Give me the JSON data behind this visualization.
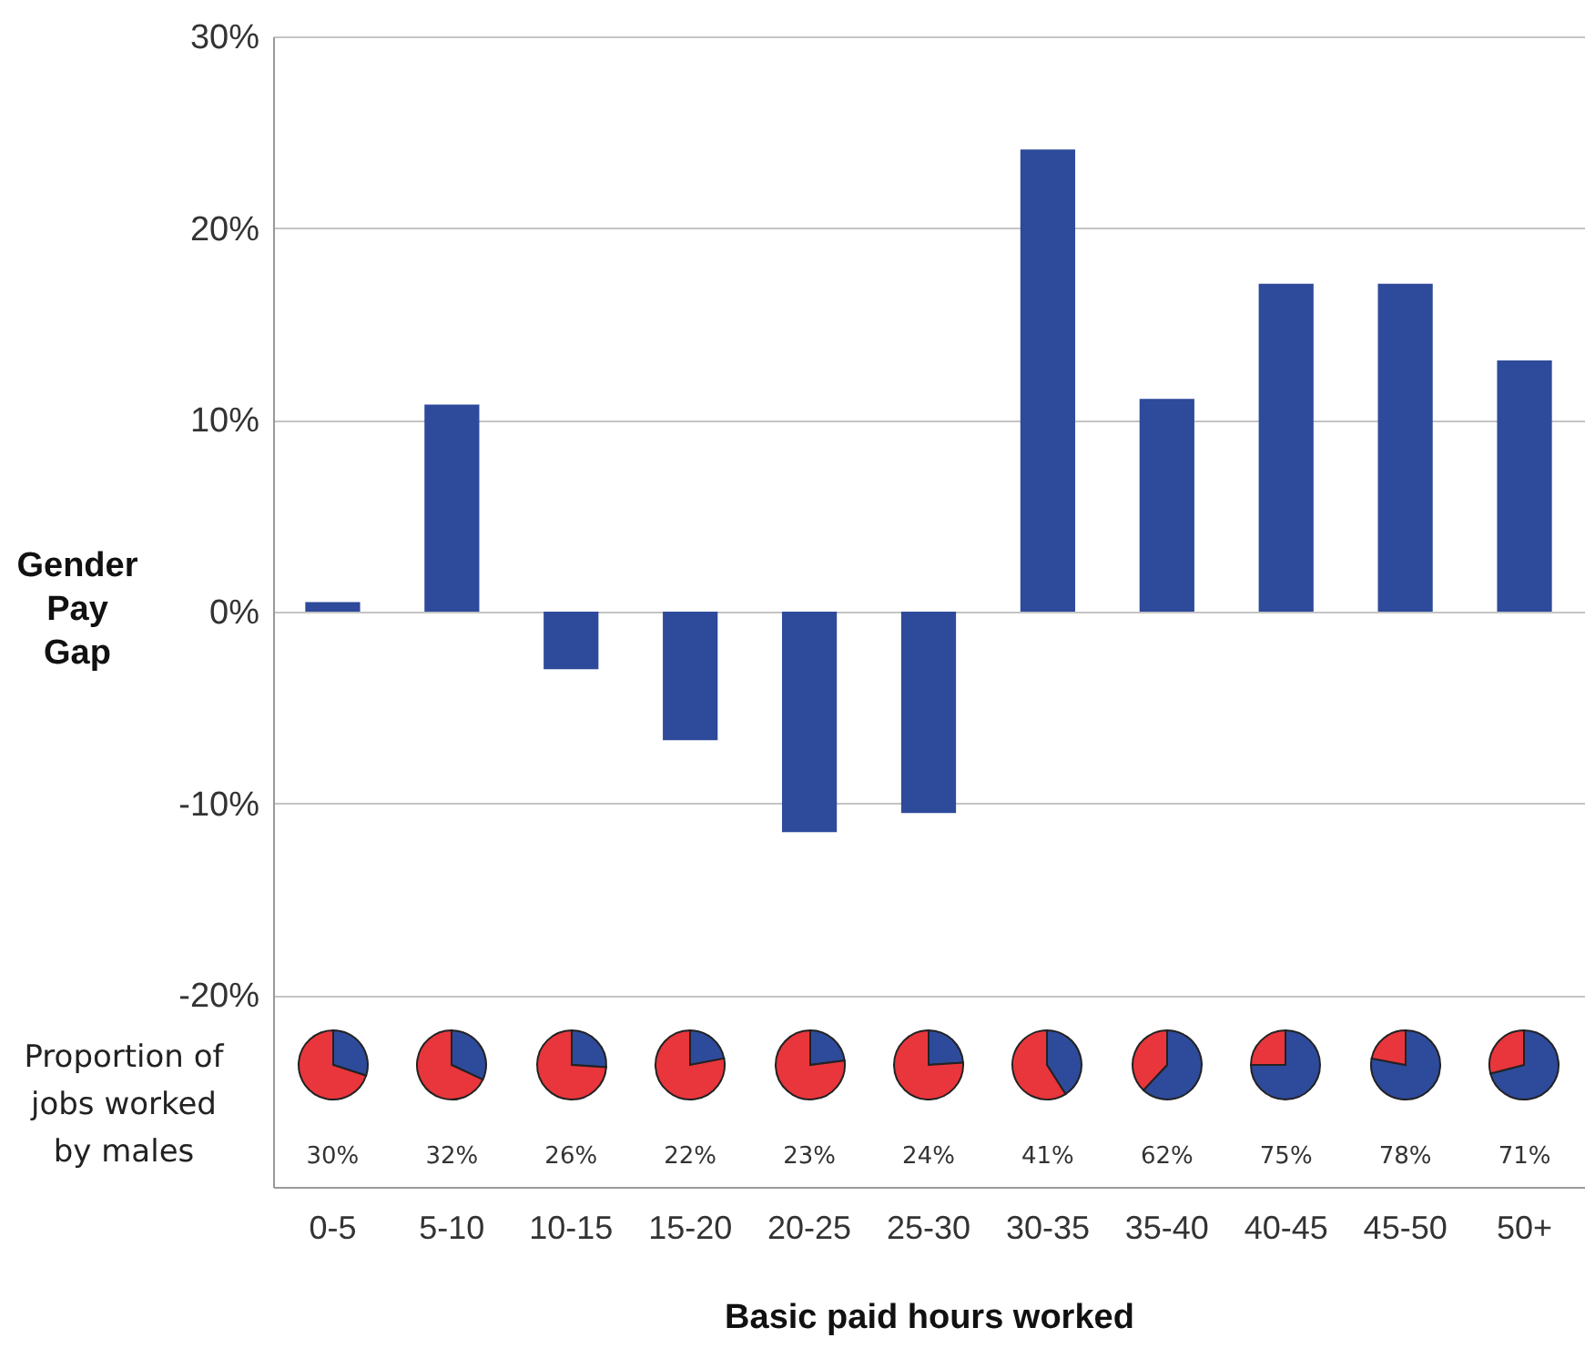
{
  "chart_data": [
    {
      "type": "bar",
      "xlabel": "Basic paid hours worked",
      "ylabel": "Gender Pay Gap",
      "categories": [
        "0-5",
        "5-10",
        "10-15",
        "15-20",
        "20-25",
        "25-30",
        "30-35",
        "35-40",
        "40-45",
        "45-50",
        "50+"
      ],
      "values": [
        0.5,
        10.8,
        -3,
        -6.7,
        -11.5,
        -10.5,
        24.1,
        11.1,
        17.1,
        17.1,
        13.1
      ],
      "color": "#2e4a9a",
      "ylim": [
        -30,
        30
      ],
      "yticks": [
        {
          "value": -20,
          "label": "-20%"
        },
        {
          "value": -10,
          "label": "-10%"
        },
        {
          "value": 0,
          "label": "0%"
        },
        {
          "value": 10,
          "label": "10%"
        },
        {
          "value": 20,
          "label": "20%"
        },
        {
          "value": 30,
          "label": "30%"
        }
      ],
      "grid": "y",
      "annotations": [
        "Proportion of jobs worked by males"
      ]
    },
    {
      "type": "pie",
      "categories": [
        null,
        null
      ],
      "values": [
        30,
        70
      ],
      "colors": [
        "#2e4a9a",
        "#e8363c"
      ],
      "annotations": [
        "30%"
      ]
    },
    {
      "type": "pie",
      "categories": [
        null,
        null
      ],
      "values": [
        32,
        68
      ],
      "colors": [
        "#2e4a9a",
        "#e8363c"
      ],
      "annotations": [
        "32%"
      ]
    },
    {
      "type": "pie",
      "categories": [
        null,
        null
      ],
      "values": [
        26,
        74
      ],
      "colors": [
        "#2e4a9a",
        "#e8363c"
      ],
      "annotations": [
        "26%"
      ]
    },
    {
      "type": "pie",
      "categories": [
        null,
        null
      ],
      "values": [
        22,
        78
      ],
      "colors": [
        "#2e4a9a",
        "#e8363c"
      ],
      "annotations": [
        "22%"
      ]
    },
    {
      "type": "pie",
      "categories": [
        null,
        null
      ],
      "values": [
        23,
        77
      ],
      "colors": [
        "#2e4a9a",
        "#e8363c"
      ],
      "annotations": [
        "23%"
      ]
    },
    {
      "type": "pie",
      "categories": [
        null,
        null
      ],
      "values": [
        24,
        76
      ],
      "colors": [
        "#2e4a9a",
        "#e8363c"
      ],
      "annotations": [
        "24%"
      ]
    },
    {
      "type": "pie",
      "categories": [
        null,
        null
      ],
      "values": [
        41,
        59
      ],
      "colors": [
        "#2e4a9a",
        "#e8363c"
      ],
      "annotations": [
        "41%"
      ]
    },
    {
      "type": "pie",
      "categories": [
        null,
        null
      ],
      "values": [
        62,
        38
      ],
      "colors": [
        "#2e4a9a",
        "#e8363c"
      ],
      "annotations": [
        "62%"
      ]
    },
    {
      "type": "pie",
      "categories": [
        null,
        null
      ],
      "values": [
        75,
        25
      ],
      "colors": [
        "#2e4a9a",
        "#e8363c"
      ],
      "annotations": [
        "75%"
      ]
    },
    {
      "type": "pie",
      "categories": [
        null,
        null
      ],
      "values": [
        78,
        22
      ],
      "colors": [
        "#2e4a9a",
        "#e8363c"
      ],
      "annotations": [
        "78%"
      ]
    },
    {
      "type": "pie",
      "categories": [
        null,
        null
      ],
      "values": [
        71,
        29
      ],
      "colors": [
        "#2e4a9a",
        "#e8363c"
      ],
      "annotations": [
        "71%"
      ]
    }
  ]
}
